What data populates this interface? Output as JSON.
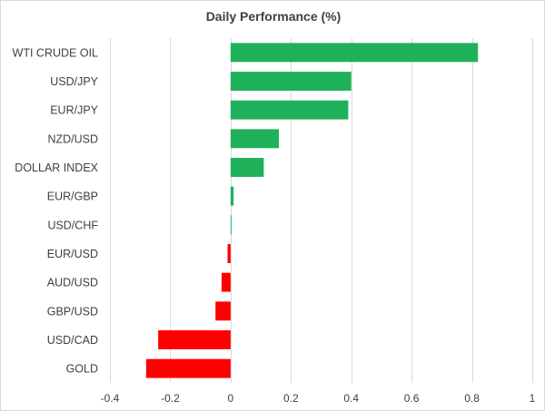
{
  "chart_data": {
    "type": "bar",
    "orientation": "horizontal",
    "title": "Daily Performance (%)",
    "xlabel": "",
    "ylabel": "",
    "categories": [
      "WTI CRUDE OIL",
      "USD/JPY",
      "EUR/JPY",
      "NZD/USD",
      "DOLLAR INDEX",
      "EUR/GBP",
      "USD/CHF",
      "EUR/USD",
      "AUD/USD",
      "GBP/USD",
      "USD/CAD",
      "GOLD"
    ],
    "values": [
      0.82,
      0.4,
      0.39,
      0.16,
      0.11,
      0.01,
      0.003,
      -0.01,
      -0.03,
      -0.05,
      -0.24,
      -0.28
    ],
    "xlim": [
      -0.4,
      1
    ],
    "xticks": [
      -0.4,
      -0.2,
      0,
      0.2,
      0.4,
      0.6,
      0.8,
      1
    ],
    "xtick_labels": [
      "-0.4",
      "-0.2",
      "0",
      "0.2",
      "0.4",
      "0.6",
      "0.8",
      "1"
    ],
    "grid": "vertical",
    "legend": "none",
    "colors": {
      "positive": "#1fb15a",
      "negative": "#ff0000",
      "grid": "#d9d9d9",
      "text": "#404040"
    }
  }
}
